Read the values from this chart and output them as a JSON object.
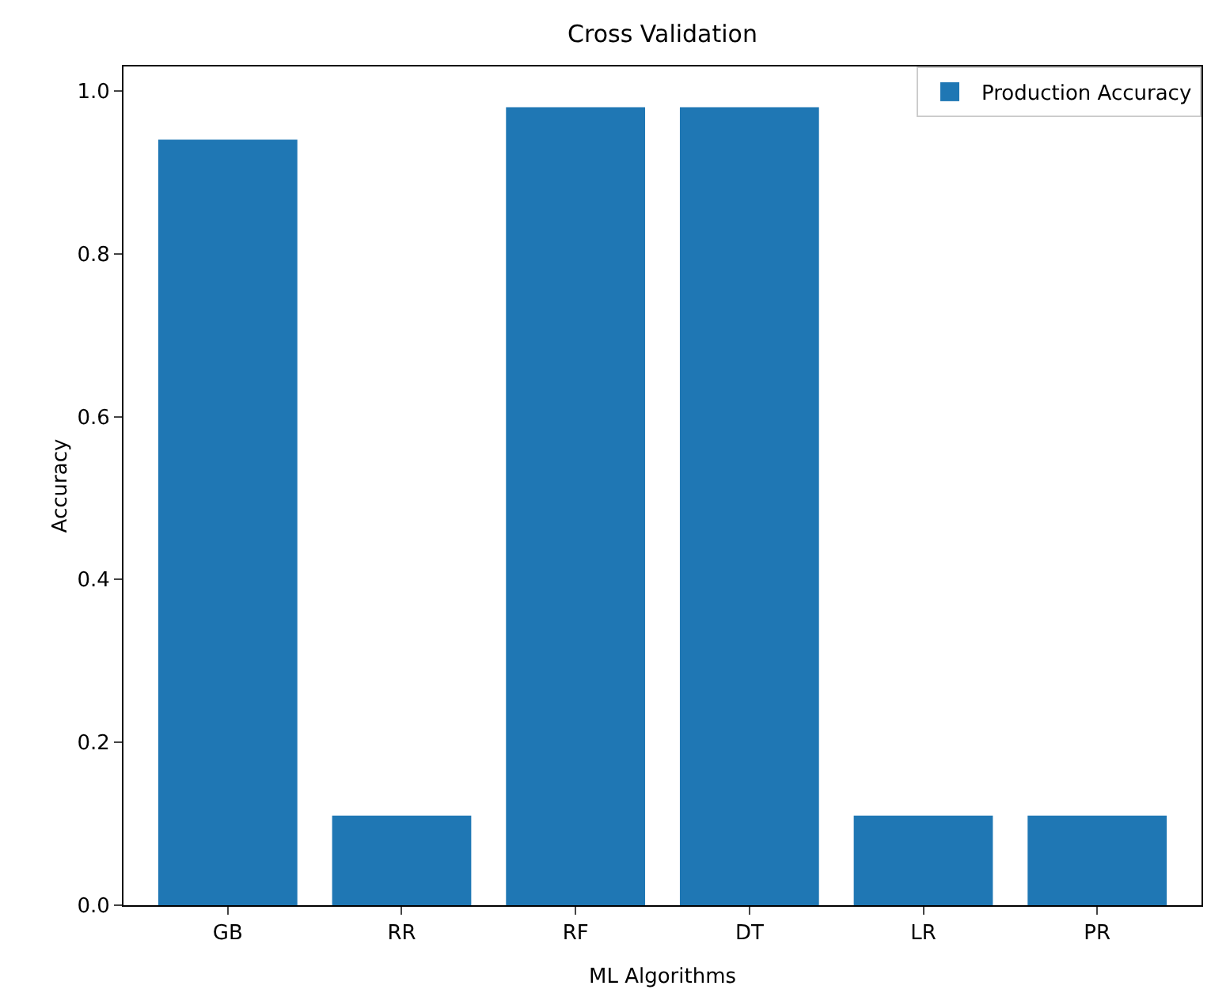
{
  "chart_data": {
    "type": "bar",
    "title": "Cross Validation",
    "xlabel": "ML Algorithms",
    "ylabel": "Accuracy",
    "categories": [
      "GB",
      "RR",
      "RF",
      "DT",
      "LR",
      "PR"
    ],
    "series": [
      {
        "name": "Production Accuracy",
        "color": "#1f77b4",
        "values": [
          0.94,
          0.11,
          0.98,
          0.98,
          0.11,
          0.11
        ]
      }
    ],
    "ylim": [
      0,
      1.03
    ],
    "yticks": [
      {
        "value": 0,
        "label": "0.0"
      },
      {
        "value": 0.2,
        "label": "0.2"
      },
      {
        "value": 0.4,
        "label": "0.4"
      },
      {
        "value": 0.6,
        "label": "0.6"
      },
      {
        "value": 0.8,
        "label": "0.8"
      },
      {
        "value": 1,
        "label": "1.0"
      }
    ],
    "grid": false,
    "legend": "top right"
  }
}
